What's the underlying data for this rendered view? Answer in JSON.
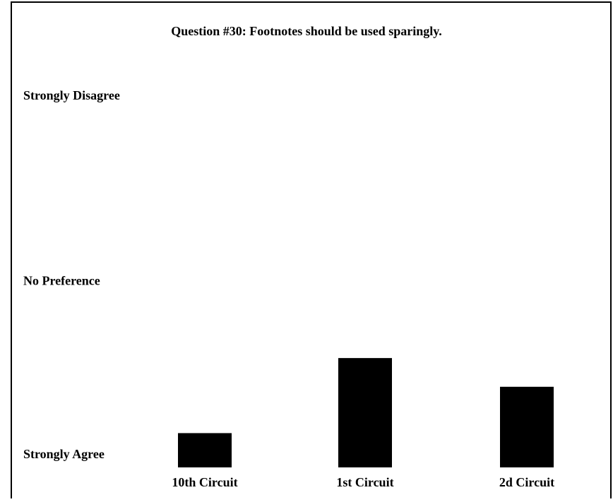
{
  "chart_data": {
    "type": "bar",
    "title": "Question #30: Footnotes should be used sparingly.",
    "categories": [
      "10th Circuit",
      "1st Circuit",
      "2d Circuit"
    ],
    "values": [
      1.37,
      2.18,
      1.87
    ],
    "color": "#000000",
    "ylim": [
      1,
      5
    ],
    "yticks": [
      {
        "value": 1,
        "label": "Strongly Agree"
      },
      {
        "value": 3,
        "label": "No Preference"
      },
      {
        "value": 5,
        "label": "Strongly Disagree"
      }
    ],
    "grid": false
  }
}
